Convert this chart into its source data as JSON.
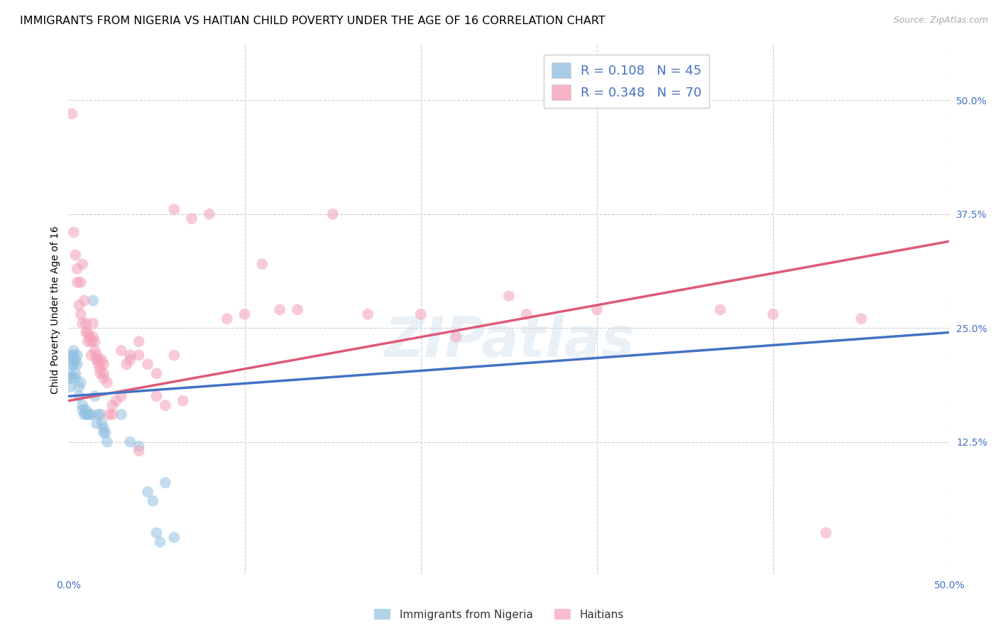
{
  "title": "IMMIGRANTS FROM NIGERIA VS HAITIAN CHILD POVERTY UNDER THE AGE OF 16 CORRELATION CHART",
  "source": "Source: ZipAtlas.com",
  "ylabel": "Child Poverty Under the Age of 16",
  "xlim": [
    0.0,
    0.5
  ],
  "ylim": [
    -0.02,
    0.56
  ],
  "xtick_positions": [
    0.0,
    0.1,
    0.2,
    0.3,
    0.4,
    0.5
  ],
  "xtick_labels": [
    "0.0%",
    "",
    "",
    "",
    "",
    "50.0%"
  ],
  "ytick_positions_right": [
    0.5,
    0.375,
    0.25,
    0.125
  ],
  "ytick_labels_right": [
    "50.0%",
    "37.5%",
    "25.0%",
    "12.5%"
  ],
  "blue_color": "#92c0e0",
  "pink_color": "#f4a0b8",
  "blue_line_color": "#4472c4",
  "pink_line_color": "#e05878",
  "dashed_line_color": "#92c0e0",
  "watermark": "ZIPatlas",
  "background_color": "#ffffff",
  "grid_color": "#cccccc",
  "title_fontsize": 11.5,
  "axis_label_fontsize": 10,
  "tick_fontsize": 10,
  "legend_fontsize": 13,
  "nigeria_R": 0.108,
  "nigeria_N": 45,
  "haitian_R": 0.348,
  "haitian_N": 70,
  "nigeria_points": [
    [
      0.001,
      0.2
    ],
    [
      0.001,
      0.195
    ],
    [
      0.001,
      0.185
    ],
    [
      0.002,
      0.22
    ],
    [
      0.002,
      0.21
    ],
    [
      0.002,
      0.195
    ],
    [
      0.003,
      0.225
    ],
    [
      0.003,
      0.22
    ],
    [
      0.003,
      0.215
    ],
    [
      0.003,
      0.21
    ],
    [
      0.004,
      0.215
    ],
    [
      0.004,
      0.2
    ],
    [
      0.004,
      0.195
    ],
    [
      0.005,
      0.22
    ],
    [
      0.005,
      0.21
    ],
    [
      0.006,
      0.175
    ],
    [
      0.006,
      0.185
    ],
    [
      0.007,
      0.19
    ],
    [
      0.008,
      0.165
    ],
    [
      0.008,
      0.16
    ],
    [
      0.009,
      0.155
    ],
    [
      0.01,
      0.155
    ],
    [
      0.01,
      0.16
    ],
    [
      0.011,
      0.155
    ],
    [
      0.012,
      0.155
    ],
    [
      0.013,
      0.155
    ],
    [
      0.014,
      0.28
    ],
    [
      0.015,
      0.175
    ],
    [
      0.016,
      0.145
    ],
    [
      0.017,
      0.155
    ],
    [
      0.018,
      0.155
    ],
    [
      0.019,
      0.145
    ],
    [
      0.02,
      0.135
    ],
    [
      0.02,
      0.14
    ],
    [
      0.021,
      0.135
    ],
    [
      0.022,
      0.125
    ],
    [
      0.03,
      0.155
    ],
    [
      0.035,
      0.125
    ],
    [
      0.04,
      0.12
    ],
    [
      0.045,
      0.07
    ],
    [
      0.048,
      0.06
    ],
    [
      0.05,
      0.025
    ],
    [
      0.052,
      0.015
    ],
    [
      0.055,
      0.08
    ],
    [
      0.06,
      0.02
    ]
  ],
  "haitian_points": [
    [
      0.002,
      0.485
    ],
    [
      0.003,
      0.355
    ],
    [
      0.004,
      0.33
    ],
    [
      0.005,
      0.315
    ],
    [
      0.005,
      0.3
    ],
    [
      0.006,
      0.275
    ],
    [
      0.007,
      0.265
    ],
    [
      0.007,
      0.3
    ],
    [
      0.008,
      0.32
    ],
    [
      0.008,
      0.255
    ],
    [
      0.009,
      0.28
    ],
    [
      0.01,
      0.255
    ],
    [
      0.01,
      0.245
    ],
    [
      0.011,
      0.235
    ],
    [
      0.011,
      0.245
    ],
    [
      0.012,
      0.24
    ],
    [
      0.013,
      0.235
    ],
    [
      0.013,
      0.22
    ],
    [
      0.014,
      0.255
    ],
    [
      0.014,
      0.24
    ],
    [
      0.015,
      0.235
    ],
    [
      0.015,
      0.225
    ],
    [
      0.016,
      0.22
    ],
    [
      0.016,
      0.215
    ],
    [
      0.017,
      0.215
    ],
    [
      0.017,
      0.21
    ],
    [
      0.018,
      0.205
    ],
    [
      0.018,
      0.2
    ],
    [
      0.019,
      0.215
    ],
    [
      0.02,
      0.21
    ],
    [
      0.02,
      0.2
    ],
    [
      0.02,
      0.195
    ],
    [
      0.022,
      0.19
    ],
    [
      0.023,
      0.155
    ],
    [
      0.025,
      0.155
    ],
    [
      0.025,
      0.165
    ],
    [
      0.027,
      0.17
    ],
    [
      0.03,
      0.175
    ],
    [
      0.03,
      0.225
    ],
    [
      0.033,
      0.21
    ],
    [
      0.035,
      0.22
    ],
    [
      0.035,
      0.215
    ],
    [
      0.04,
      0.235
    ],
    [
      0.04,
      0.22
    ],
    [
      0.04,
      0.115
    ],
    [
      0.045,
      0.21
    ],
    [
      0.05,
      0.2
    ],
    [
      0.05,
      0.175
    ],
    [
      0.055,
      0.165
    ],
    [
      0.06,
      0.22
    ],
    [
      0.06,
      0.38
    ],
    [
      0.065,
      0.17
    ],
    [
      0.07,
      0.37
    ],
    [
      0.08,
      0.375
    ],
    [
      0.09,
      0.26
    ],
    [
      0.1,
      0.265
    ],
    [
      0.11,
      0.32
    ],
    [
      0.12,
      0.27
    ],
    [
      0.13,
      0.27
    ],
    [
      0.15,
      0.375
    ],
    [
      0.17,
      0.265
    ],
    [
      0.2,
      0.265
    ],
    [
      0.22,
      0.24
    ],
    [
      0.25,
      0.285
    ],
    [
      0.26,
      0.265
    ],
    [
      0.3,
      0.27
    ],
    [
      0.37,
      0.27
    ],
    [
      0.4,
      0.265
    ],
    [
      0.43,
      0.025
    ],
    [
      0.45,
      0.26
    ]
  ],
  "nigeria_line": [
    [
      0.0,
      0.175
    ],
    [
      0.5,
      0.245
    ]
  ],
  "haitian_line": [
    [
      0.0,
      0.17
    ],
    [
      0.5,
      0.345
    ]
  ]
}
